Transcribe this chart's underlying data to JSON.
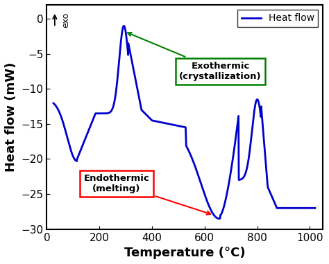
{
  "xlim": [
    0,
    1050
  ],
  "ylim": [
    -30,
    2
  ],
  "xlabel": "Temperature (°C)",
  "ylabel": "Heat flow (mW)",
  "line_color": "#0000CC",
  "line_width": 2.0,
  "legend_label": "Heat flow",
  "background_color": "#ffffff",
  "axis_fontsize": 13,
  "tick_fontsize": 11,
  "exo_label": "exo",
  "annot_exo_text": "Exothermic\n(crystallization)",
  "annot_endo_text": "Endothermic\n(melting)",
  "xticks": [
    0,
    200,
    400,
    600,
    800,
    1000
  ],
  "yticks": [
    0,
    -5,
    -10,
    -15,
    -20,
    -25,
    -30
  ]
}
